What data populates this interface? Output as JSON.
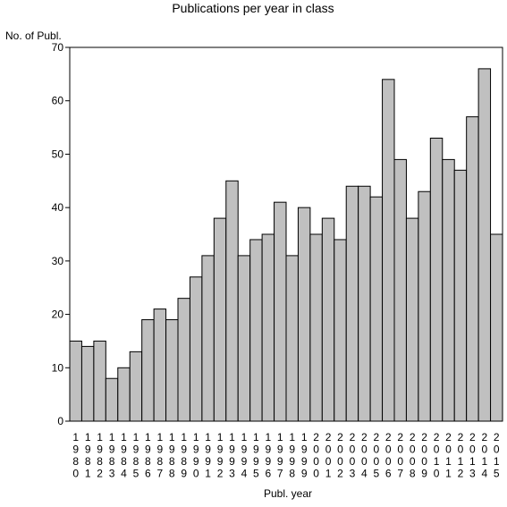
{
  "chart_data": {
    "type": "bar",
    "title": "Publications per year in class",
    "xlabel": "Publ. year",
    "ylabel": "No. of Publ.",
    "ylim": [
      0,
      70
    ],
    "yticks": [
      0,
      10,
      20,
      30,
      40,
      50,
      60,
      70
    ],
    "grid": false,
    "legend": "none",
    "categories": [
      "1980",
      "1981",
      "1982",
      "1983",
      "1984",
      "1985",
      "1986",
      "1987",
      "1988",
      "1989",
      "1990",
      "1991",
      "1992",
      "1993",
      "1994",
      "1995",
      "1996",
      "1997",
      "1998",
      "1999",
      "2000",
      "2001",
      "2002",
      "2003",
      "2004",
      "2005",
      "2006",
      "2007",
      "2008",
      "2009",
      "2010",
      "2011",
      "2012",
      "2013",
      "2014",
      "2015"
    ],
    "values": [
      15,
      14,
      15,
      8,
      10,
      13,
      19,
      21,
      19,
      23,
      27,
      31,
      38,
      45,
      31,
      34,
      35,
      41,
      31,
      40,
      35,
      38,
      34,
      44,
      44,
      42,
      64,
      49,
      38,
      43,
      53,
      49,
      47,
      57,
      66,
      35
    ],
    "colors": {
      "bar_fill": "#c0c0c0",
      "bar_stroke": "#000000",
      "axis": "#000000",
      "background": "#ffffff"
    }
  }
}
